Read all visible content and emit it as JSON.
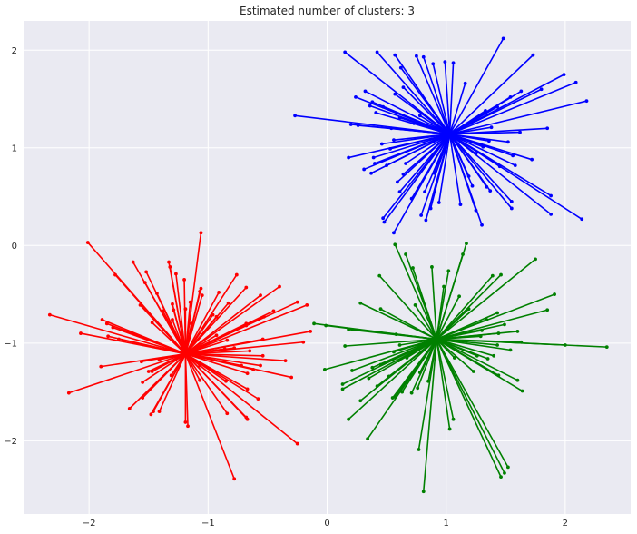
{
  "chart_data": {
    "type": "scatter",
    "title": "Estimated number of clusters: 3",
    "xlabel": "",
    "ylabel": "",
    "xlim": [
      -2.55,
      2.55
    ],
    "ylim": [
      -2.75,
      2.3
    ],
    "x_ticks": [
      -2,
      -1,
      0,
      1,
      2
    ],
    "y_ticks": [
      -2,
      -1,
      0,
      1,
      2
    ],
    "grid": true,
    "legend": "none",
    "background_color": "#eaeaf2",
    "grid_color": "#ffffff",
    "series": [
      {
        "color": "#0000ff",
        "center": [
          1.03,
          1.14
        ],
        "points": [
          [
            1.48,
            2.12
          ],
          [
            0.15,
            1.98
          ],
          [
            0.42,
            1.98
          ],
          [
            0.57,
            1.95
          ],
          [
            0.75,
            1.94
          ],
          [
            1.73,
            1.95
          ],
          [
            0.81,
            1.93
          ],
          [
            0.89,
            1.86
          ],
          [
            0.99,
            1.88
          ],
          [
            0.62,
            1.82
          ],
          [
            1.06,
            1.87
          ],
          [
            1.99,
            1.75
          ],
          [
            2.09,
            1.67
          ],
          [
            1.16,
            1.66
          ],
          [
            0.32,
            1.58
          ],
          [
            0.57,
            1.55
          ],
          [
            0.64,
            1.62
          ],
          [
            1.8,
            1.6
          ],
          [
            1.63,
            1.58
          ],
          [
            2.18,
            1.48
          ],
          [
            0.24,
            1.52
          ],
          [
            0.38,
            1.47
          ],
          [
            1.54,
            1.52
          ],
          [
            0.36,
            1.43
          ],
          [
            1.43,
            1.42
          ],
          [
            0.47,
            1.42
          ],
          [
            -0.27,
            1.33
          ],
          [
            0.41,
            1.36
          ],
          [
            0.61,
            1.31
          ],
          [
            1.33,
            1.38
          ],
          [
            0.78,
            1.33
          ],
          [
            0.2,
            1.24
          ],
          [
            0.26,
            1.23
          ],
          [
            0.54,
            1.2
          ],
          [
            0.73,
            1.25
          ],
          [
            1.85,
            1.2
          ],
          [
            1.38,
            1.21
          ],
          [
            1.62,
            1.16
          ],
          [
            0.46,
            1.04
          ],
          [
            0.56,
            1.08
          ],
          [
            1.36,
            1.07
          ],
          [
            1.52,
            1.06
          ],
          [
            0.53,
            0.99
          ],
          [
            1.31,
            1.01
          ],
          [
            0.18,
            0.9
          ],
          [
            0.39,
            0.9
          ],
          [
            1.56,
            0.92
          ],
          [
            1.25,
            0.94
          ],
          [
            0.31,
            0.78
          ],
          [
            0.4,
            0.84
          ],
          [
            0.5,
            0.82
          ],
          [
            0.66,
            0.84
          ],
          [
            1.45,
            0.81
          ],
          [
            1.58,
            0.82
          ],
          [
            1.72,
            0.88
          ],
          [
            0.37,
            0.74
          ],
          [
            0.64,
            0.73
          ],
          [
            0.9,
            0.74
          ],
          [
            1.19,
            0.71
          ],
          [
            0.59,
            0.65
          ],
          [
            0.61,
            0.55
          ],
          [
            0.82,
            0.55
          ],
          [
            1.22,
            0.61
          ],
          [
            1.34,
            0.6
          ],
          [
            1.37,
            0.56
          ],
          [
            1.88,
            0.51
          ],
          [
            0.71,
            0.48
          ],
          [
            0.94,
            0.44
          ],
          [
            1.12,
            0.42
          ],
          [
            0.87,
            0.38
          ],
          [
            1.25,
            0.36
          ],
          [
            1.55,
            0.38
          ],
          [
            1.55,
            0.45
          ],
          [
            1.88,
            0.32
          ],
          [
            0.47,
            0.28
          ],
          [
            0.48,
            0.24
          ],
          [
            0.79,
            0.31
          ],
          [
            0.83,
            0.26
          ],
          [
            1.3,
            0.21
          ],
          [
            2.14,
            0.27
          ],
          [
            0.56,
            0.13
          ]
        ]
      },
      {
        "color": "#ff0000",
        "center": [
          -1.19,
          -1.11
        ],
        "points": [
          [
            -1.06,
            0.13
          ],
          [
            -2.01,
            0.03
          ],
          [
            -1.63,
            -0.17
          ],
          [
            -1.33,
            -0.17
          ],
          [
            -1.32,
            -0.22
          ],
          [
            -1.52,
            -0.27
          ],
          [
            -1.27,
            -0.29
          ],
          [
            -1.78,
            -0.3
          ],
          [
            -0.76,
            -0.3
          ],
          [
            -1.2,
            -0.35
          ],
          [
            -1.53,
            -0.38
          ],
          [
            -0.68,
            -0.43
          ],
          [
            -1.06,
            -0.44
          ],
          [
            -1.07,
            -0.47
          ],
          [
            -0.91,
            -0.48
          ],
          [
            -0.4,
            -0.42
          ],
          [
            -1.43,
            -0.49
          ],
          [
            -1.05,
            -0.51
          ],
          [
            -0.56,
            -0.51
          ],
          [
            -1.15,
            -0.58
          ],
          [
            -0.83,
            -0.59
          ],
          [
            -1.57,
            -0.61
          ],
          [
            -1.3,
            -0.6
          ],
          [
            -0.25,
            -0.58
          ],
          [
            -0.17,
            -0.61
          ],
          [
            -0.45,
            -0.67
          ],
          [
            -1.29,
            -0.66
          ],
          [
            -1.19,
            -0.65
          ],
          [
            -1.38,
            -0.67
          ],
          [
            -0.96,
            -0.71
          ],
          [
            -2.33,
            -0.71
          ],
          [
            -0.93,
            -0.73
          ],
          [
            -1.89,
            -0.76
          ],
          [
            -1.3,
            -0.76
          ],
          [
            -0.53,
            -0.73
          ],
          [
            -1.47,
            -0.79
          ],
          [
            -1.14,
            -0.8
          ],
          [
            -0.68,
            -0.8
          ],
          [
            -1.85,
            -0.8
          ],
          [
            -0.68,
            -0.82
          ],
          [
            -0.14,
            -0.88
          ],
          [
            -1.8,
            -0.84
          ],
          [
            -2.07,
            -0.9
          ],
          [
            -1.84,
            -0.93
          ],
          [
            -0.93,
            -0.92
          ],
          [
            -1.75,
            -0.96
          ],
          [
            -0.54,
            -0.96
          ],
          [
            -0.84,
            -0.97
          ],
          [
            -0.2,
            -0.99
          ],
          [
            -0.78,
            -1.05
          ],
          [
            -0.86,
            -1.06
          ],
          [
            -0.65,
            -1.08
          ],
          [
            -1.41,
            -1.17
          ],
          [
            -1.56,
            -1.19
          ],
          [
            -0.54,
            -1.13
          ],
          [
            -1.9,
            -1.24
          ],
          [
            -0.35,
            -1.18
          ],
          [
            -1.07,
            -1.23
          ],
          [
            -0.72,
            -1.23
          ],
          [
            -1.5,
            -1.29
          ],
          [
            -0.56,
            -1.23
          ],
          [
            -1.47,
            -1.29
          ],
          [
            -0.62,
            -1.27
          ],
          [
            -1.31,
            -1.33
          ],
          [
            -0.67,
            -1.31
          ],
          [
            -0.3,
            -1.35
          ],
          [
            -1.55,
            -1.4
          ],
          [
            -1.07,
            -1.38
          ],
          [
            -0.85,
            -1.39
          ],
          [
            -2.17,
            -1.51
          ],
          [
            -0.67,
            -1.47
          ],
          [
            -1.55,
            -1.56
          ],
          [
            -0.58,
            -1.57
          ],
          [
            -1.66,
            -1.67
          ],
          [
            -1.41,
            -1.7
          ],
          [
            -1.46,
            -1.7
          ],
          [
            -0.84,
            -1.72
          ],
          [
            -1.48,
            -1.73
          ],
          [
            -0.68,
            -1.76
          ],
          [
            -0.67,
            -1.78
          ],
          [
            -1.19,
            -1.81
          ],
          [
            -1.17,
            -1.85
          ],
          [
            -0.25,
            -2.03
          ],
          [
            -0.78,
            -2.39
          ]
        ]
      },
      {
        "color": "#008000",
        "center": [
          0.92,
          -0.96
        ],
        "points": [
          [
            0.57,
            0.01
          ],
          [
            1.17,
            0.02
          ],
          [
            0.66,
            -0.09
          ],
          [
            1.14,
            -0.09
          ],
          [
            0.88,
            -0.22
          ],
          [
            0.72,
            -0.23
          ],
          [
            1.75,
            -0.14
          ],
          [
            1.02,
            -0.26
          ],
          [
            1.46,
            -0.3
          ],
          [
            1.39,
            -0.31
          ],
          [
            0.44,
            -0.31
          ],
          [
            0.98,
            -0.42
          ],
          [
            1.91,
            -0.5
          ],
          [
            1.11,
            -0.52
          ],
          [
            0.28,
            -0.59
          ],
          [
            0.74,
            -0.61
          ],
          [
            0.45,
            -0.65
          ],
          [
            1.19,
            -0.65
          ],
          [
            1.43,
            -0.69
          ],
          [
            1.85,
            -0.66
          ],
          [
            1.34,
            -0.76
          ],
          [
            -0.11,
            -0.8
          ],
          [
            -0.01,
            -0.82
          ],
          [
            1.49,
            -0.81
          ],
          [
            0.18,
            -0.86
          ],
          [
            1.3,
            -0.87
          ],
          [
            1.44,
            -0.9
          ],
          [
            1.6,
            -0.88
          ],
          [
            0.58,
            -0.91
          ],
          [
            1.29,
            -0.93
          ],
          [
            1.63,
            -0.99
          ],
          [
            0.15,
            -1.03
          ],
          [
            0.61,
            -1.02
          ],
          [
            1.43,
            -1.02
          ],
          [
            2.0,
            -1.02
          ],
          [
            2.35,
            -1.04
          ],
          [
            1.54,
            -1.07
          ],
          [
            0.56,
            -1.09
          ],
          [
            1.26,
            -1.13
          ],
          [
            1.07,
            -1.15
          ],
          [
            1.4,
            -1.13
          ],
          [
            0.67,
            -1.15
          ],
          [
            0.6,
            -1.18
          ],
          [
            1.35,
            -1.16
          ],
          [
            0.45,
            -1.22
          ],
          [
            0.38,
            -1.25
          ],
          [
            -0.02,
            -1.27
          ],
          [
            0.21,
            -1.28
          ],
          [
            1.23,
            -1.29
          ],
          [
            0.78,
            -1.3
          ],
          [
            1.44,
            -1.33
          ],
          [
            0.52,
            -1.34
          ],
          [
            0.35,
            -1.36
          ],
          [
            1.6,
            -1.38
          ],
          [
            0.85,
            -1.39
          ],
          [
            0.13,
            -1.42
          ],
          [
            0.42,
            -1.44
          ],
          [
            0.13,
            -1.47
          ],
          [
            0.76,
            -1.46
          ],
          [
            0.63,
            -1.5
          ],
          [
            0.71,
            -1.51
          ],
          [
            1.64,
            -1.49
          ],
          [
            0.57,
            -1.55
          ],
          [
            0.55,
            -1.56
          ],
          [
            0.28,
            -1.59
          ],
          [
            0.18,
            -1.78
          ],
          [
            1.06,
            -1.78
          ],
          [
            1.03,
            -1.88
          ],
          [
            0.34,
            -1.98
          ],
          [
            0.77,
            -2.09
          ],
          [
            1.52,
            -2.27
          ],
          [
            1.49,
            -2.33
          ],
          [
            1.46,
            -2.37
          ],
          [
            0.81,
            -2.52
          ]
        ]
      }
    ]
  }
}
